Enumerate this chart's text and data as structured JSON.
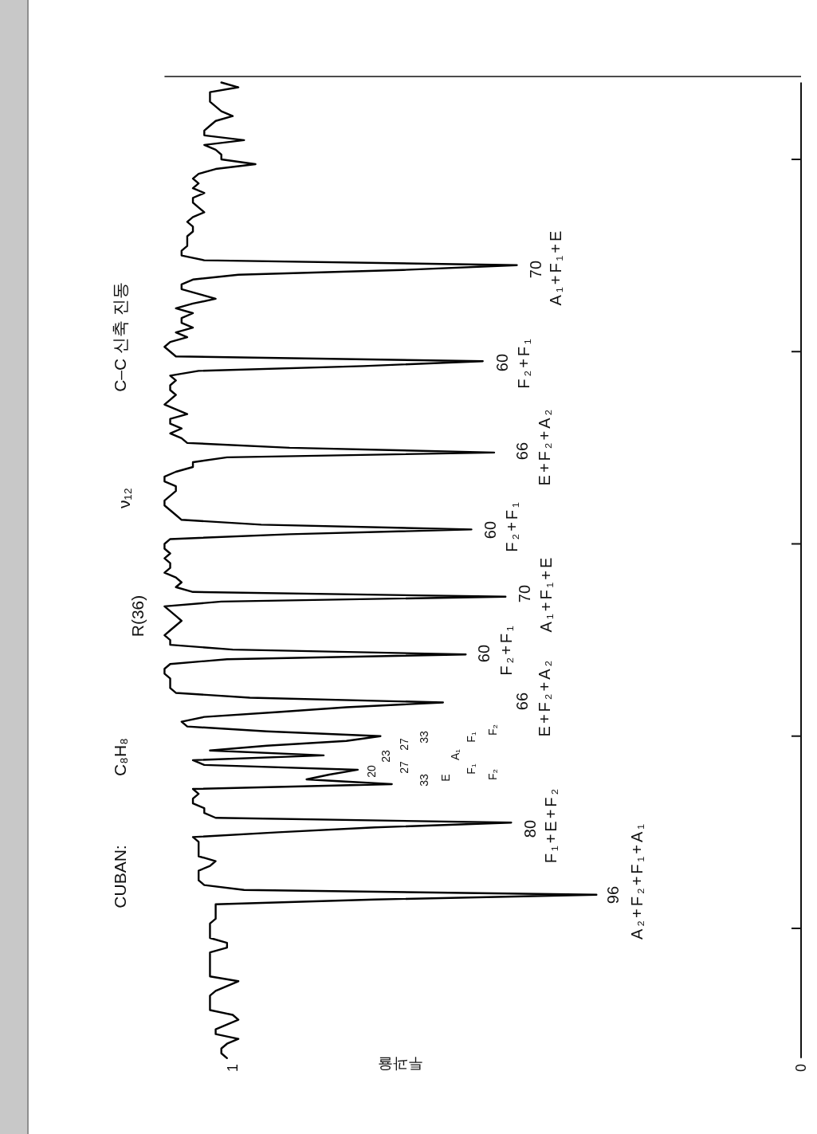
{
  "chart_data": {
    "type": "line",
    "orientation": "horizontal",
    "title": "CUBAN:",
    "xlabel": "투과율",
    "color": "#000000",
    "xlim": [
      1.12,
      0
    ],
    "xticks": [
      1,
      0
    ],
    "tick_labels": "x",
    "categories": [
      null,
      null,
      null,
      null,
      null,
      null,
      null,
      null,
      null,
      null,
      null,
      null,
      null,
      null,
      null,
      null,
      null,
      null,
      null,
      null,
      null,
      null,
      null,
      null,
      null,
      null,
      null,
      null,
      null,
      null,
      null,
      null,
      null,
      null,
      null,
      null,
      null,
      null,
      null,
      null,
      null,
      null,
      null,
      null,
      null,
      null,
      null,
      null,
      null,
      null,
      null,
      null,
      null,
      null,
      null,
      null,
      null,
      null,
      null,
      null,
      null,
      null,
      null,
      null,
      null,
      null,
      null,
      null,
      null,
      null,
      null,
      null,
      null,
      null,
      null,
      null,
      null,
      null,
      null,
      null,
      null,
      null,
      null,
      null,
      null,
      null,
      null,
      null,
      null,
      null,
      null,
      null,
      null,
      null,
      null,
      null,
      null,
      null,
      null,
      null,
      null,
      null,
      null,
      null,
      null,
      null,
      null,
      null,
      null,
      null,
      null,
      null,
      null,
      null,
      null,
      null,
      null,
      null,
      null,
      null,
      null,
      null,
      null,
      null,
      null,
      null,
      null,
      null,
      null,
      null,
      null,
      null,
      null,
      null,
      null,
      null,
      null,
      null,
      null,
      null,
      null,
      null,
      null,
      null,
      null,
      null,
      null,
      null,
      null,
      null,
      null,
      null,
      null,
      null,
      null,
      null,
      null,
      null,
      null,
      null,
      null,
      null,
      null,
      null,
      null,
      null,
      null,
      null,
      null,
      null,
      null,
      null,
      null,
      null,
      null,
      null,
      null,
      null,
      null,
      null,
      null,
      null,
      null,
      null,
      null,
      null,
      null,
      null,
      null,
      null,
      null,
      null,
      null,
      null,
      null,
      null,
      null,
      null,
      null,
      null,
      null,
      null,
      null,
      null
    ],
    "values": [
      1.02,
      0.99,
      1.04,
      1.04,
      1.04,
      1.03,
      1.02,
      1.0,
      1.03,
      1.04,
      1.05,
      1.05,
      0.98,
      1.05,
      1.03,
      1.02,
      1.02,
      0.96,
      1.03,
      1.06,
      1.07,
      1.06,
      1.07,
      1.05,
      1.07,
      1.07,
      1.06,
      1.05,
      1.07,
      1.08,
      1.07,
      1.07,
      1.08,
      1.08,
      1.08,
      1.09,
      1.09,
      1.05,
      0.5,
      0.7,
      0.99,
      1.07,
      1.09,
      1.09,
      1.06,
      1.03,
      1.07,
      1.1,
      1.07,
      1.09,
      1.09,
      1.07,
      1.1,
      1.08,
      1.11,
      1.12,
      1.11,
      1.1,
      0.56,
      0.77,
      1.06,
      1.11,
      1.1,
      1.11,
      1.11,
      1.1,
      1.11,
      1.12,
      1.1,
      1.08,
      1.11,
      1.11,
      1.09,
      1.11,
      1.09,
      1.08,
      0.9,
      0.54,
      1.01,
      1.07,
      1.07,
      1.1,
      1.12,
      1.12,
      1.1,
      1.1,
      1.11,
      1.12,
      1.12,
      1.11,
      1.1,
      1.09,
      0.95,
      0.58,
      0.9,
      1.11,
      1.12,
      1.12,
      1.11,
      1.12,
      1.11,
      1.11,
      1.12,
      1.1,
      1.09,
      1.1,
      1.07,
      0.52,
      1.02,
      1.12,
      1.11,
      1.1,
      1.09,
      1.1,
      1.11,
      1.12,
      1.11,
      1.11,
      1.0,
      0.59,
      1.01,
      1.11,
      1.12,
      1.12,
      1.11,
      1.11,
      1.11,
      1.1,
      0.97,
      0.63,
      0.8,
      0.92,
      1.05,
      1.09,
      1.08,
      0.94,
      0.74,
      0.8,
      0.94,
      1.04,
      0.84,
      1.07,
      1.05,
      0.78,
      0.83,
      0.87,
      0.72,
      1.07,
      1.06,
      1.07,
      1.07,
      1.05,
      1.05,
      1.03,
      0.51,
      0.75,
      0.92,
      1.07,
      1.06,
      1.06,
      1.06,
      1.06,
      1.03,
      1.04,
      1.06,
      1.06,
      1.06,
      1.05,
      0.98,
      0.36,
      0.75,
      1.03,
      1.03,
      1.03,
      1.03,
      1.04,
      1.04,
      1.04,
      1.04,
      1.01,
      1.01,
      1.04,
      1.04,
      1.04,
      1.04,
      1.04,
      1.04,
      0.99,
      1.01,
      1.03,
      1.04,
      1.04,
      1.04,
      1.04,
      1.0,
      0.99,
      1.01,
      1.03,
      1.03,
      0.99,
      1.01,
      1.02,
      1.02,
      1.01
    ],
    "annotations": [
      "C₈H₈",
      "R(36)",
      "ν₁₂",
      "C–C 신축 진동",
      "96",
      "A₂+F₂+F₁+A₁",
      "80",
      "F₁+E+F₂",
      "20",
      "23",
      "27",
      "27",
      "33",
      "33",
      "E",
      "A₁",
      "F₁",
      "F₁",
      "F₂",
      "F₂",
      "66",
      "E+F₂+A₂",
      "60",
      "F₂+F₁",
      "70",
      "A₁+F₁+E",
      "60",
      "F₂+F₁",
      "66",
      "E+F₂+A₂",
      "60",
      "F₂+F₁",
      "70",
      "A₁+F₁+E"
    ]
  }
}
